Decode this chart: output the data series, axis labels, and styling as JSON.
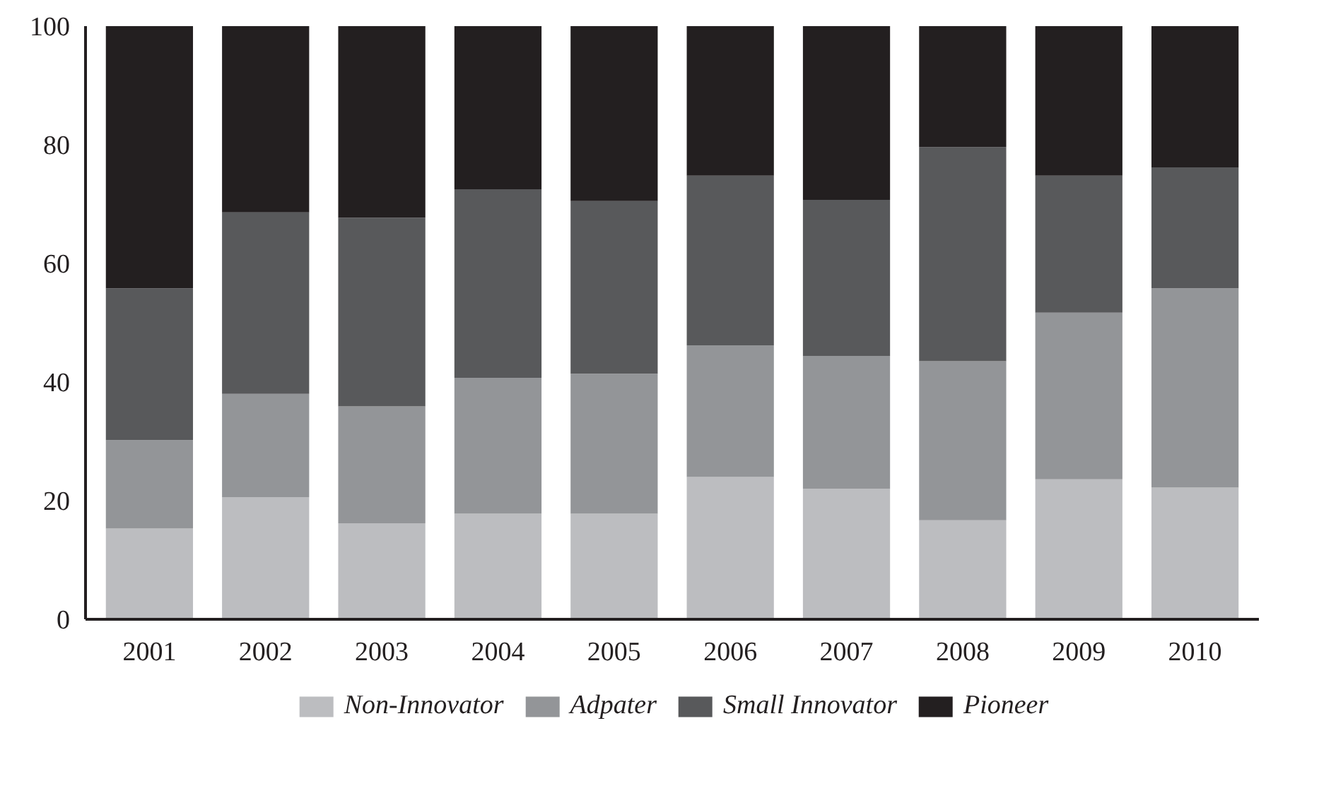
{
  "chart_data": {
    "type": "bar",
    "stacked": true,
    "categories": [
      "2001",
      "2002",
      "2003",
      "2004",
      "2005",
      "2006",
      "2007",
      "2008",
      "2009",
      "2010"
    ],
    "series": [
      {
        "name": "Non-Innovator",
        "color": "#bcbdc0",
        "values": [
          15.3,
          20.6,
          16.2,
          17.8,
          17.8,
          24.0,
          22.0,
          16.7,
          23.6,
          22.2
        ]
      },
      {
        "name": "Adpater",
        "color": "#939598",
        "values": [
          14.9,
          17.4,
          19.7,
          22.9,
          23.6,
          22.2,
          22.4,
          26.8,
          28.1,
          33.6
        ]
      },
      {
        "name": "Small Innovator",
        "color": "#58595b",
        "values": [
          25.6,
          30.6,
          31.8,
          31.8,
          29.1,
          28.6,
          26.3,
          36.1,
          23.1,
          20.4
        ]
      },
      {
        "name": "Pioneer",
        "color": "#231f20",
        "values": [
          44.2,
          31.4,
          32.3,
          27.5,
          29.5,
          25.2,
          29.3,
          20.4,
          25.2,
          23.8
        ]
      }
    ],
    "ylim": [
      0,
      100
    ],
    "yticks": [
      0,
      20,
      40,
      60,
      80,
      100
    ],
    "grid": false,
    "legend": "bottom"
  }
}
